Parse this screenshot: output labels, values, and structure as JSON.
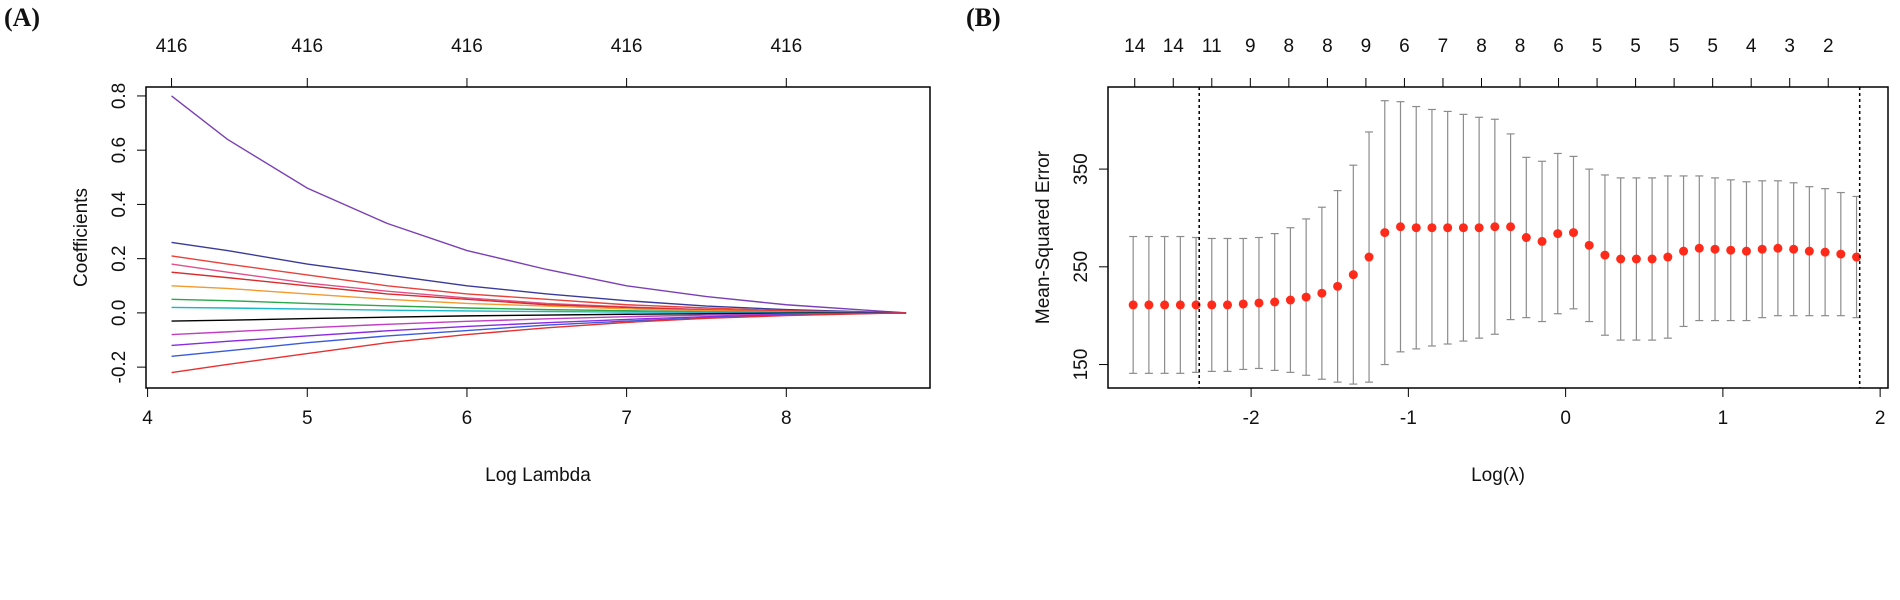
{
  "chart_data": [
    {
      "type": "line",
      "panel_label": "(A)",
      "xlabel": "Log Lambda",
      "ylabel": "Coefficients",
      "xlim": [
        3.99,
        8.9
      ],
      "ylim": [
        -0.277,
        0.833
      ],
      "xticks": [
        4,
        5,
        6,
        7,
        8
      ],
      "yticks": [
        {
          "value": -0.2,
          "label": "-0.2"
        },
        {
          "value": 0,
          "label": "0.0"
        },
        {
          "value": 0.2,
          "label": "0.2"
        },
        {
          "value": 0.4,
          "label": "0.4"
        },
        {
          "value": 0.6,
          "label": "0.6"
        },
        {
          "value": 0.8,
          "label": "0.8"
        }
      ],
      "x2ticks": [
        {
          "value": 4.15,
          "label": "416"
        },
        {
          "value": 5,
          "label": "416"
        },
        {
          "value": 6,
          "label": "416"
        },
        {
          "value": 7,
          "label": "416"
        },
        {
          "value": 8,
          "label": "416"
        }
      ],
      "x": [
        4.15,
        4.5,
        5,
        5.5,
        6,
        6.5,
        7,
        7.5,
        8,
        8.5,
        8.75
      ],
      "series": [
        {
          "color": "#7b3fb5",
          "values": [
            0.8,
            0.64,
            0.46,
            0.33,
            0.23,
            0.16,
            0.1,
            0.06,
            0.03,
            0.01,
            0
          ]
        },
        {
          "color": "#3a3a9a",
          "values": [
            0.26,
            0.23,
            0.18,
            0.14,
            0.1,
            0.07,
            0.045,
            0.025,
            0.012,
            0.004,
            0
          ]
        },
        {
          "color": "#e8413a",
          "values": [
            0.21,
            0.18,
            0.14,
            0.1,
            0.07,
            0.05,
            0.03,
            0.018,
            0.008,
            0.002,
            0
          ]
        },
        {
          "color": "#e0508a",
          "values": [
            0.18,
            0.15,
            0.11,
            0.08,
            0.055,
            0.035,
            0.022,
            0.012,
            0.005,
            0.001,
            0
          ]
        },
        {
          "color": "#d82b2b",
          "values": [
            0.15,
            0.13,
            0.1,
            0.07,
            0.05,
            0.03,
            0.02,
            0.01,
            0.005,
            0.001,
            0
          ]
        },
        {
          "color": "#f29a2e",
          "values": [
            0.1,
            0.09,
            0.07,
            0.05,
            0.035,
            0.025,
            0.015,
            0.008,
            0.004,
            0.001,
            0
          ]
        },
        {
          "color": "#2aa84a",
          "values": [
            0.05,
            0.045,
            0.035,
            0.026,
            0.018,
            0.012,
            0.008,
            0.004,
            0.002,
            0.001,
            0
          ]
        },
        {
          "color": "#17b7c9",
          "values": [
            0.02,
            0.018,
            0.014,
            0.01,
            0.007,
            0.005,
            0.003,
            0.002,
            0.001,
            0,
            0
          ]
        },
        {
          "color": "#000000",
          "values": [
            -0.03,
            -0.027,
            -0.021,
            -0.016,
            -0.011,
            -0.008,
            -0.005,
            -0.003,
            -0.001,
            0,
            0
          ]
        },
        {
          "color": "#c040c0",
          "values": [
            -0.08,
            -0.07,
            -0.055,
            -0.042,
            -0.031,
            -0.022,
            -0.014,
            -0.008,
            -0.004,
            -0.001,
            0
          ]
        },
        {
          "color": "#8a2be2",
          "values": [
            -0.12,
            -0.105,
            -0.085,
            -0.066,
            -0.05,
            -0.036,
            -0.024,
            -0.014,
            -0.006,
            -0.002,
            0
          ]
        },
        {
          "color": "#3b5bdb",
          "values": [
            -0.16,
            -0.14,
            -0.11,
            -0.085,
            -0.065,
            -0.045,
            -0.03,
            -0.018,
            -0.008,
            -0.002,
            0
          ]
        },
        {
          "color": "#e83030",
          "values": [
            -0.22,
            -0.19,
            -0.15,
            -0.11,
            -0.08,
            -0.055,
            -0.035,
            -0.02,
            -0.01,
            -0.003,
            0
          ]
        }
      ]
    },
    {
      "type": "errorbar",
      "panel_label": "(B)",
      "xlabel": "Log(λ)",
      "ylabel": "Mean-Squared Error",
      "xlim": [
        -2.91,
        2.05
      ],
      "ylim": [
        126,
        434
      ],
      "xticks": [
        -2,
        -1,
        0,
        1,
        2
      ],
      "yticks": [
        150,
        250,
        350
      ],
      "x2ticks": [
        {
          "value": -2.74,
          "label": "14"
        },
        {
          "value": -2.495,
          "label": "14"
        },
        {
          "value": -2.25,
          "label": "11"
        },
        {
          "value": -2.005,
          "label": "9"
        },
        {
          "value": -1.76,
          "label": "8"
        },
        {
          "value": -1.515,
          "label": "8"
        },
        {
          "value": -1.27,
          "label": "9"
        },
        {
          "value": -1.025,
          "label": "6"
        },
        {
          "value": -0.78,
          "label": "7"
        },
        {
          "value": -0.535,
          "label": "8"
        },
        {
          "value": -0.29,
          "label": "8"
        },
        {
          "value": -0.045,
          "label": "6"
        },
        {
          "value": 0.2,
          "label": "5"
        },
        {
          "value": 0.445,
          "label": "5"
        },
        {
          "value": 0.69,
          "label": "5"
        },
        {
          "value": 0.935,
          "label": "5"
        },
        {
          "value": 1.18,
          "label": "4"
        },
        {
          "value": 1.425,
          "label": "3"
        },
        {
          "value": 1.67,
          "label": "2"
        }
      ],
      "vlines": [
        -2.33,
        1.87
      ],
      "error_color": "#8c8c8c",
      "x": [
        -2.75,
        -2.65,
        -2.55,
        -2.45,
        -2.35,
        -2.25,
        -2.15,
        -2.05,
        -1.95,
        -1.85,
        -1.75,
        -1.65,
        -1.55,
        -1.45,
        -1.35,
        -1.25,
        -1.15,
        -1.05,
        -0.95,
        -0.85,
        -0.75,
        -0.65,
        -0.55,
        -0.45,
        -0.35,
        -0.25,
        -0.15,
        -0.05,
        0.05,
        0.15,
        0.25,
        0.35,
        0.45,
        0.55,
        0.65,
        0.75,
        0.85,
        0.95,
        1.05,
        1.15,
        1.25,
        1.35,
        1.45,
        1.55,
        1.65,
        1.75,
        1.85
      ],
      "series": [
        {
          "color": "#ff2a1a",
          "values": [
            211,
            211,
            211,
            211,
            211,
            211,
            211,
            212,
            213,
            214,
            216,
            219,
            223,
            230,
            242,
            260,
            285,
            291,
            290,
            290,
            290,
            290,
            290,
            291,
            291,
            280,
            276,
            284,
            285,
            272,
            262,
            258,
            258,
            258,
            260,
            266,
            269,
            268,
            267,
            266,
            268,
            269,
            268,
            266,
            265,
            263,
            260
          ],
          "errors": [
            70,
            70,
            70,
            70,
            69,
            68,
            68,
            67,
            67,
            70,
            74,
            80,
            88,
            98,
            112,
            128,
            135,
            128,
            124,
            121,
            119,
            116,
            113,
            110,
            95,
            82,
            82,
            82,
            78,
            78,
            82,
            83,
            83,
            83,
            83,
            77,
            74,
            73,
            72,
            71,
            70,
            69,
            68,
            66,
            65,
            63,
            62
          ]
        }
      ]
    }
  ]
}
